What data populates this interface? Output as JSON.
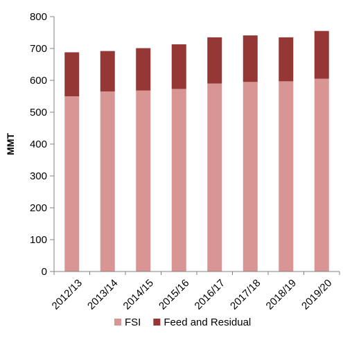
{
  "chart_data": {
    "type": "bar",
    "stacked": true,
    "categories": [
      "2012/13",
      "2013/14",
      "2014/15",
      "2015/16",
      "2016/17",
      "2017/18",
      "2018/19",
      "2019/20"
    ],
    "series": [
      {
        "name": "FSI",
        "color": "#d99594",
        "values": [
          550,
          565,
          568,
          573,
          590,
          595,
          597,
          605
        ]
      },
      {
        "name": "Feed and Residual",
        "color": "#953735",
        "values": [
          138,
          127,
          133,
          140,
          145,
          146,
          138,
          150
        ]
      }
    ],
    "ylabel": "MMT",
    "xlabel": "",
    "ylim": [
      0,
      800
    ],
    "yticks": [
      0,
      100,
      200,
      300,
      400,
      500,
      600,
      700,
      800
    ],
    "grid": false,
    "legend_position": "bottom"
  }
}
